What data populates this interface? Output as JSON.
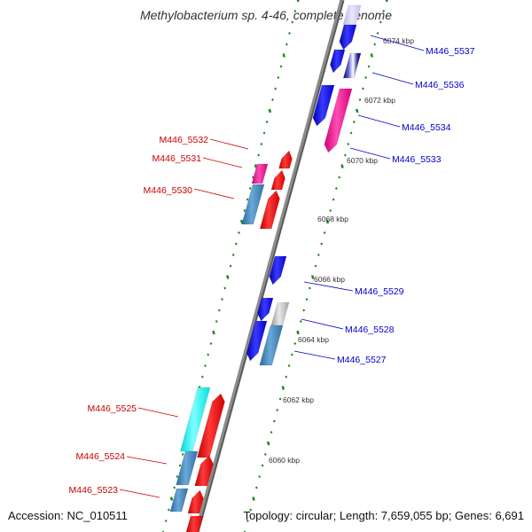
{
  "title": "Methylobacterium sp. 4-46, complete genome",
  "footer": {
    "accession": "Accession: NC_010511",
    "summary": "Topology: circular; Length: 7,659,055 bp; Genes: 6,691"
  },
  "colors": {
    "background": "#ffffff",
    "backbone": "#8c8c8c",
    "ruler_dots": "#1a8a1a",
    "forward_label": "#0000cc",
    "reverse_label": "#cc0000",
    "kbp_label": "#333333"
  },
  "kbp_ticks": [
    "6074 kbp",
    "6072 kbp",
    "6070 kbp",
    "6068 kbp",
    "6066 kbp",
    "6064 kbp",
    "6062 kbp",
    "6060 kbp"
  ],
  "forward_genes": [
    {
      "label": "M446_5537"
    },
    {
      "label": "M446_5536"
    },
    {
      "label": "M446_5534"
    },
    {
      "label": "M446_5533"
    },
    {
      "label": "M446_5529"
    },
    {
      "label": "M446_5528"
    },
    {
      "label": "M446_5527"
    }
  ],
  "reverse_genes": [
    {
      "label": "M446_5532"
    },
    {
      "label": "M446_5531"
    },
    {
      "label": "M446_5530"
    },
    {
      "label": "M446_5525"
    },
    {
      "label": "M446_5524"
    },
    {
      "label": "M446_5523"
    }
  ]
}
